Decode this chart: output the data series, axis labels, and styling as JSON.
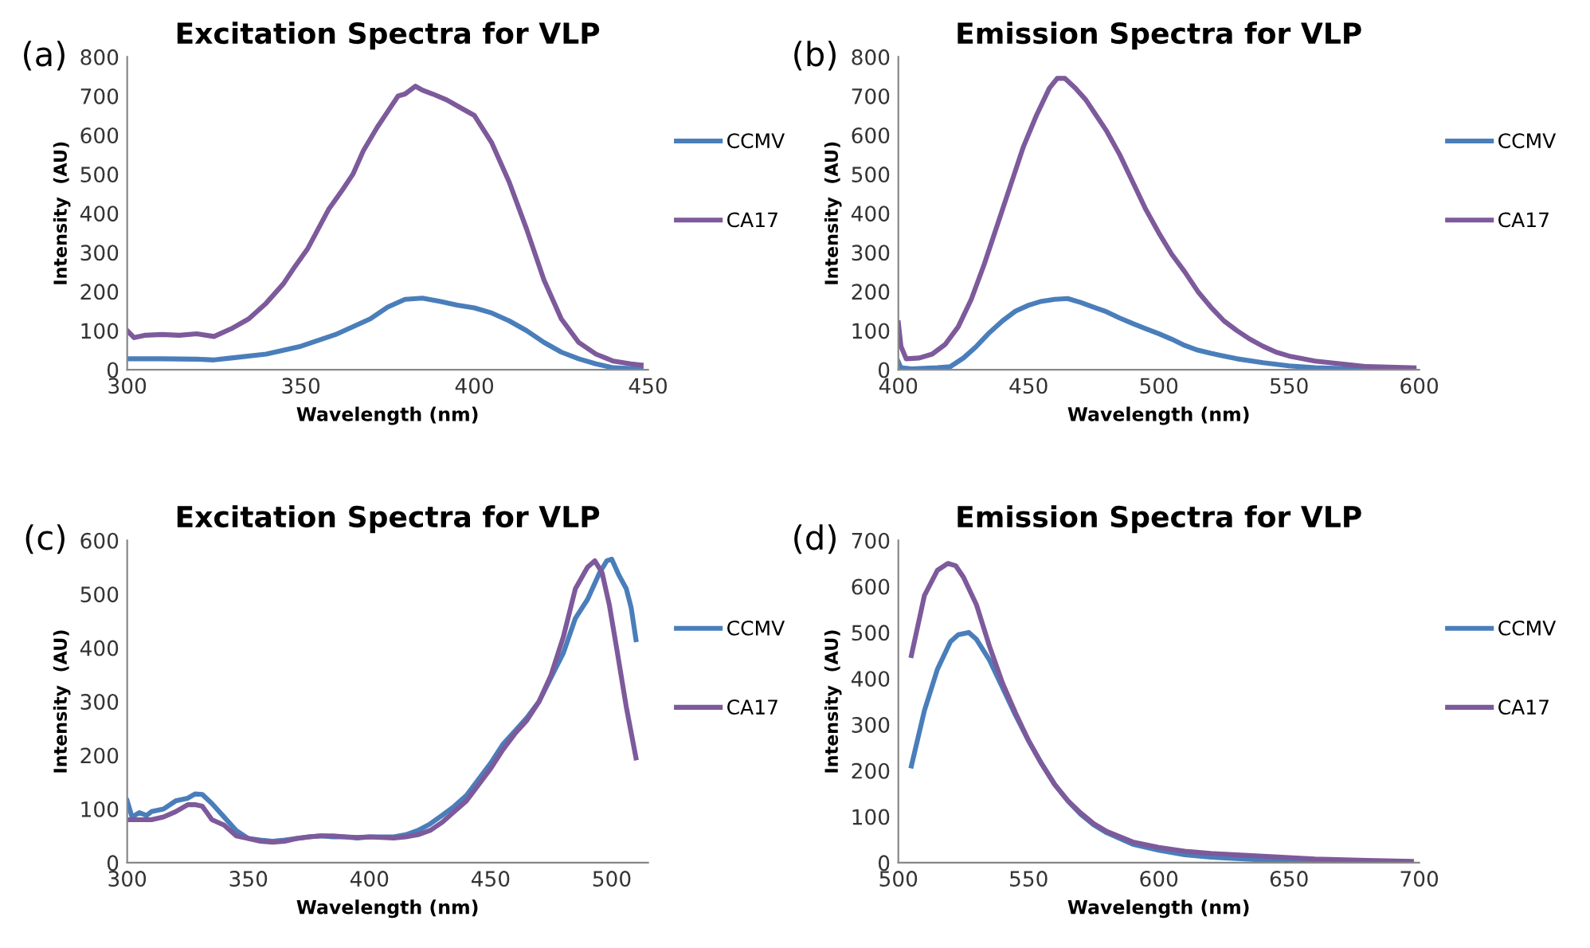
{
  "chart_data": [
    {
      "type": "line",
      "title": "Excitation Spectra for VLP",
      "xlabel": "Wavelength (nm)",
      "ylabel": "Intensity  (AU)",
      "annotations": [
        "(a)"
      ],
      "xlim": [
        300,
        450
      ],
      "xticks": [
        300,
        350,
        400,
        450
      ],
      "ylim": [
        0,
        800
      ],
      "yticks": [
        0,
        100,
        200,
        300,
        400,
        500,
        600,
        700,
        800
      ],
      "legend": "right",
      "grid": false,
      "series": [
        {
          "name": "CCMV",
          "color": "#4a7ebb",
          "x": [
            300,
            310,
            320,
            325,
            330,
            340,
            350,
            360,
            370,
            375,
            380,
            385,
            390,
            395,
            400,
            405,
            410,
            415,
            420,
            425,
            430,
            435,
            440,
            445,
            448
          ],
          "values": [
            28,
            28,
            27,
            25,
            30,
            40,
            60,
            90,
            130,
            160,
            180,
            183,
            175,
            165,
            158,
            145,
            125,
            100,
            70,
            45,
            28,
            15,
            5,
            3,
            2
          ]
        },
        {
          "name": "CA17",
          "color": "#7d5a9b",
          "x": [
            300,
            302,
            305,
            310,
            315,
            320,
            325,
            330,
            335,
            340,
            345,
            348,
            352,
            355,
            358,
            362,
            365,
            368,
            372,
            375,
            378,
            380,
            383,
            385,
            388,
            392,
            396,
            400,
            405,
            410,
            415,
            420,
            425,
            430,
            435,
            440,
            445,
            448
          ],
          "values": [
            100,
            82,
            88,
            90,
            88,
            92,
            85,
            105,
            130,
            170,
            220,
            260,
            310,
            360,
            410,
            460,
            500,
            560,
            620,
            660,
            700,
            705,
            725,
            715,
            705,
            690,
            670,
            650,
            580,
            480,
            360,
            230,
            130,
            70,
            40,
            22,
            15,
            12
          ]
        }
      ]
    },
    {
      "type": "line",
      "title": "Emission Spectra for VLP",
      "xlabel": "Wavelength (nm)",
      "ylabel": "Intensity  (AU)",
      "annotations": [
        "(b)"
      ],
      "xlim": [
        400,
        600
      ],
      "xticks": [
        400,
        450,
        500,
        550,
        600
      ],
      "ylim": [
        0,
        800
      ],
      "yticks": [
        0,
        100,
        200,
        300,
        400,
        500,
        600,
        700,
        800
      ],
      "legend": "right",
      "grid": false,
      "series": [
        {
          "name": "CCMV",
          "color": "#4a7ebb",
          "x": [
            400,
            401,
            405,
            415,
            420,
            425,
            430,
            435,
            440,
            445,
            450,
            455,
            460,
            465,
            470,
            475,
            480,
            485,
            490,
            495,
            500,
            505,
            510,
            515,
            520,
            525,
            530,
            540,
            550,
            560,
            570,
            580,
            598
          ],
          "values": [
            20,
            5,
            2,
            5,
            8,
            30,
            60,
            95,
            125,
            150,
            165,
            175,
            180,
            182,
            172,
            160,
            148,
            132,
            118,
            105,
            92,
            78,
            62,
            50,
            42,
            35,
            28,
            18,
            10,
            5,
            3,
            2,
            1
          ]
        },
        {
          "name": "CA17",
          "color": "#7d5a9b",
          "x": [
            400,
            401,
            403,
            408,
            413,
            418,
            423,
            428,
            433,
            438,
            443,
            448,
            453,
            458,
            461,
            464,
            468,
            472,
            476,
            480,
            485,
            490,
            495,
            500,
            505,
            510,
            515,
            520,
            525,
            530,
            535,
            540,
            545,
            550,
            560,
            570,
            580,
            598
          ],
          "values": [
            120,
            60,
            28,
            30,
            40,
            65,
            110,
            180,
            270,
            370,
            470,
            570,
            650,
            720,
            745,
            745,
            720,
            690,
            650,
            610,
            550,
            480,
            410,
            350,
            295,
            250,
            200,
            160,
            125,
            100,
            78,
            60,
            45,
            35,
            22,
            15,
            8,
            5
          ]
        }
      ]
    },
    {
      "type": "line",
      "title": "Excitation Spectra for VLP",
      "xlabel": "Wavelength (nm)",
      "ylabel": "Intensity  (AU)",
      "annotations": [
        "(c)"
      ],
      "xlim": [
        300,
        515
      ],
      "xticks": [
        300,
        350,
        400,
        450,
        500
      ],
      "ylim": [
        0,
        600
      ],
      "yticks": [
        0,
        100,
        200,
        300,
        400,
        500,
        600
      ],
      "legend": "right",
      "grid": false,
      "series": [
        {
          "name": "CCMV",
          "color": "#4a7ebb",
          "x": [
            300,
            302,
            305,
            308,
            310,
            315,
            320,
            325,
            328,
            331,
            335,
            340,
            345,
            350,
            355,
            360,
            365,
            370,
            375,
            380,
            385,
            390,
            395,
            400,
            405,
            410,
            415,
            420,
            425,
            430,
            435,
            440,
            445,
            450,
            455,
            460,
            465,
            470,
            475,
            480,
            485,
            490,
            495,
            498,
            500,
            503,
            506,
            508,
            510
          ],
          "values": [
            115,
            85,
            93,
            88,
            95,
            100,
            115,
            120,
            128,
            127,
            110,
            85,
            60,
            45,
            42,
            40,
            42,
            45,
            48,
            50,
            48,
            48,
            46,
            48,
            48,
            48,
            52,
            60,
            72,
            88,
            105,
            125,
            155,
            185,
            220,
            245,
            270,
            300,
            345,
            390,
            455,
            490,
            540,
            562,
            565,
            535,
            510,
            475,
            415
          ]
        },
        {
          "name": "CA17",
          "color": "#7d5a9b",
          "x": [
            300,
            305,
            310,
            315,
            320,
            325,
            328,
            331,
            335,
            340,
            345,
            350,
            355,
            360,
            365,
            370,
            375,
            380,
            385,
            390,
            395,
            400,
            405,
            410,
            415,
            420,
            425,
            430,
            435,
            440,
            445,
            450,
            455,
            460,
            465,
            470,
            475,
            480,
            485,
            490,
            493,
            496,
            499,
            502,
            506,
            510
          ],
          "values": [
            80,
            80,
            80,
            85,
            95,
            108,
            108,
            105,
            80,
            70,
            50,
            45,
            40,
            38,
            40,
            45,
            48,
            50,
            50,
            48,
            47,
            48,
            47,
            46,
            48,
            52,
            60,
            75,
            95,
            115,
            145,
            175,
            210,
            240,
            265,
            300,
            350,
            420,
            510,
            550,
            562,
            540,
            480,
            400,
            290,
            195
          ]
        }
      ]
    },
    {
      "type": "line",
      "title": "Emission Spectra for VLP",
      "xlabel": "Wavelength (nm)",
      "ylabel": "Intensity  (AU)",
      "annotations": [
        "(d)"
      ],
      "xlim": [
        500,
        700
      ],
      "xticks": [
        500,
        550,
        600,
        650,
        700
      ],
      "ylim": [
        0,
        700
      ],
      "yticks": [
        0,
        100,
        200,
        300,
        400,
        500,
        600,
        700
      ],
      "legend": "right",
      "grid": false,
      "series": [
        {
          "name": "CCMV",
          "color": "#4a7ebb",
          "x": [
            505,
            510,
            515,
            520,
            523,
            527,
            530,
            535,
            540,
            545,
            550,
            555,
            560,
            565,
            570,
            575,
            580,
            590,
            600,
            610,
            620,
            640,
            660,
            680,
            697
          ],
          "values": [
            210,
            330,
            420,
            480,
            495,
            500,
            485,
            440,
            380,
            320,
            265,
            215,
            170,
            135,
            105,
            82,
            65,
            40,
            27,
            17,
            12,
            6,
            3,
            2,
            1
          ]
        },
        {
          "name": "CA17",
          "color": "#7d5a9b",
          "x": [
            505,
            510,
            515,
            519,
            522,
            525,
            530,
            535,
            540,
            545,
            550,
            555,
            560,
            565,
            570,
            575,
            580,
            590,
            600,
            610,
            620,
            640,
            660,
            680,
            697
          ],
          "values": [
            450,
            580,
            635,
            650,
            645,
            620,
            560,
            470,
            390,
            325,
            265,
            215,
            170,
            135,
            108,
            85,
            68,
            45,
            33,
            25,
            20,
            14,
            8,
            5,
            3
          ]
        }
      ]
    }
  ]
}
